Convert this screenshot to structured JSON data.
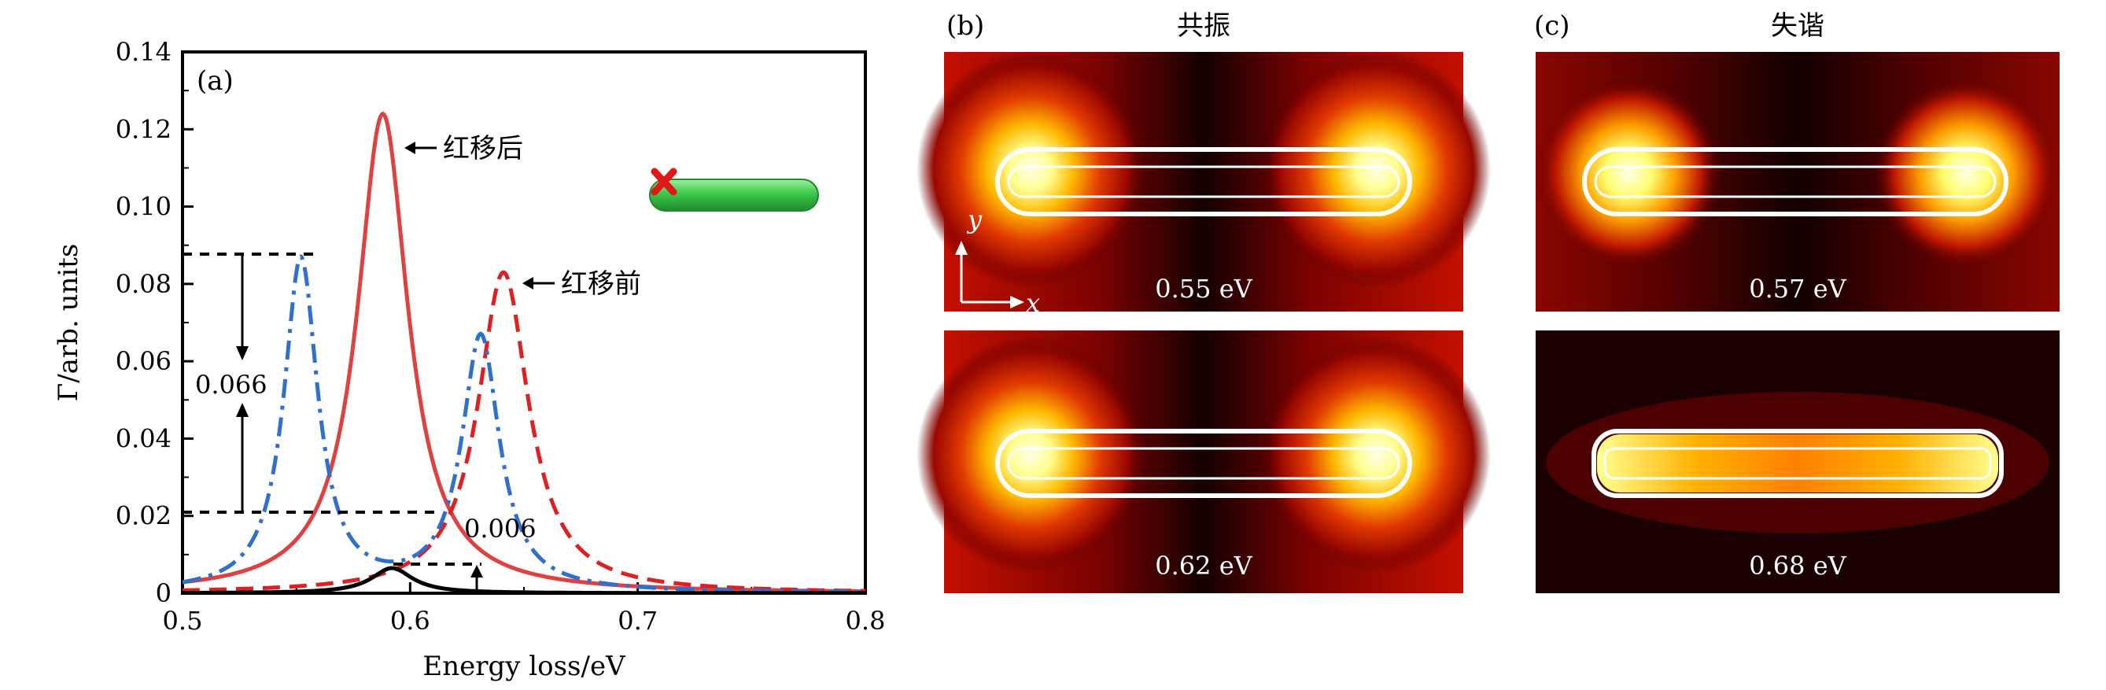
{
  "panels": {
    "a": {
      "label": "(a)",
      "chart_data": {
        "type": "line",
        "xlabel": "Energy loss/eV",
        "ylabel": "Γ/arb. units",
        "xlim": [
          0.5,
          0.8
        ],
        "ylim": [
          0,
          0.14
        ],
        "x_ticks": [
          "0.5",
          "0.6",
          "0.7",
          "0.8"
        ],
        "y_ticks": [
          "0",
          "0.02",
          "0.04",
          "0.06",
          "0.08",
          "0.10",
          "0.12",
          "0.14"
        ],
        "grid": false,
        "series": [
          {
            "style": "solid",
            "color": "#e04040",
            "peaks": [
              {
                "x0": 0.588,
                "amp": 0.124,
                "hwhm": 0.0135
              }
            ],
            "baseline": 0.0
          },
          {
            "style": "dashed",
            "color": "#e02020",
            "peaks": [
              {
                "x0": 0.641,
                "amp": 0.083,
                "hwhm": 0.0135
              }
            ],
            "baseline": 0.0
          },
          {
            "style": "dashdot",
            "color": "#2f6fd0",
            "peaks": [
              {
                "x0": 0.552,
                "amp": 0.086,
                "hwhm": 0.009
              },
              {
                "x0": 0.631,
                "amp": 0.066,
                "hwhm": 0.01
              }
            ],
            "baseline": 0.0
          },
          {
            "style": "solid",
            "color": "#000000",
            "peaks": [
              {
                "x0": 0.592,
                "amp": 0.0065,
                "hwhm": 0.011
              }
            ],
            "baseline": 0.0
          }
        ],
        "annotations": [
          {
            "text": "红移后",
            "x": 0.6,
            "y": 0.1535
          },
          {
            "text": "红移前",
            "x": 0.652,
            "y": 0.1065
          },
          {
            "text": "0.066",
            "x": 0.505,
            "y": 0.058
          },
          {
            "text": "0.006",
            "x": 0.622,
            "y": 0.0198
          }
        ]
      }
    },
    "b": {
      "label": "(b)",
      "title": "共振",
      "axis_y": "y",
      "axis_x": "x",
      "maps": [
        {
          "energy": "0.55 eV",
          "mode": "resonant"
        },
        {
          "energy": "0.62 eV",
          "mode": "resonant"
        }
      ]
    },
    "c": {
      "label": "(c)",
      "title": "失谐",
      "maps": [
        {
          "energy": "0.57 eV",
          "mode": "detuned"
        },
        {
          "energy": "0.68 eV",
          "mode": "detuned-long"
        }
      ]
    }
  },
  "colors": {
    "red_solid": "#e04040",
    "red_dashed": "#e02020",
    "blue_dashdot": "#2f6fd0",
    "black": "#000000",
    "heat_dark": "#1a0000",
    "heat_hot": "#ffffd0",
    "rod_green": "#3cc84a",
    "marker_red": "#e01818"
  }
}
